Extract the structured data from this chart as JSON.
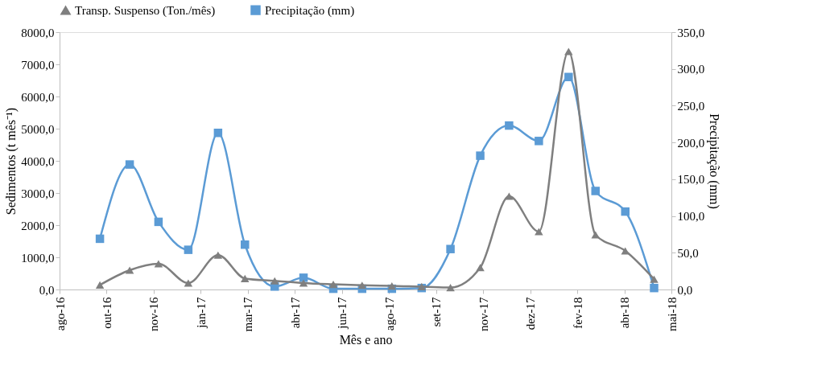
{
  "chart_data": {
    "type": "line",
    "x": [
      "2016-10-05",
      "2016-11-05",
      "2016-12-05",
      "2017-01-05",
      "2017-02-05",
      "2017-03-05",
      "2017-04-05",
      "2017-05-05",
      "2017-06-05",
      "2017-07-05",
      "2017-08-05",
      "2017-09-05",
      "2017-10-05",
      "2017-11-05",
      "2017-12-05",
      "2018-01-05",
      "2018-02-05",
      "2018-03-05",
      "2018-04-05",
      "2018-05-05"
    ],
    "series": [
      {
        "name": "Transp. Suspenso (Ton./mês)",
        "color": "#7f7f7f",
        "marker": "triangle",
        "values": [
          140,
          600,
          800,
          200,
          1070,
          340,
          270,
          200,
          160,
          130,
          110,
          90,
          60,
          680,
          2900,
          1800,
          7400,
          1700,
          1200,
          320
        ]
      },
      {
        "name": "Precipitação (mm)",
        "color": "#5b9bd5",
        "marker": "square",
        "axis": "y2",
        "values": [
          69,
          170,
          92,
          54,
          213,
          61,
          4,
          16,
          1,
          1,
          1,
          2,
          55,
          182,
          223,
          202,
          289,
          134,
          106,
          2
        ]
      }
    ],
    "xlabel": "Mês e ano",
    "ylabel": "Sedimentos (t mês⁻¹)",
    "y2label": "Precipitação (mm)",
    "xlim": [
      "2016-08-24",
      "2018-05-23"
    ],
    "xticks": [
      {
        "value": "2016-08-24",
        "label": "ago-16"
      },
      {
        "value": "2016-10-12",
        "label": "out-16"
      },
      {
        "value": "2016-11-30",
        "label": "nov-16"
      },
      {
        "value": "2017-01-18",
        "label": "jan-17"
      },
      {
        "value": "2017-03-08",
        "label": "mar-17"
      },
      {
        "value": "2017-04-26",
        "label": "abr-17"
      },
      {
        "value": "2017-06-14",
        "label": "jun-17"
      },
      {
        "value": "2017-08-02",
        "label": "ago-17"
      },
      {
        "value": "2017-09-20",
        "label": "set-17"
      },
      {
        "value": "2017-11-08",
        "label": "nov-17"
      },
      {
        "value": "2017-12-27",
        "label": "dez-17"
      },
      {
        "value": "2018-02-14",
        "label": "fev-18"
      },
      {
        "value": "2018-04-04",
        "label": "abr-18"
      },
      {
        "value": "2018-05-23",
        "label": "mai-18"
      }
    ],
    "ylim": [
      0,
      8000
    ],
    "yticks": [
      {
        "value": 0,
        "label": "0,0"
      },
      {
        "value": 1000,
        "label": "1000,0"
      },
      {
        "value": 2000,
        "label": "2000,0"
      },
      {
        "value": 3000,
        "label": "3000,0"
      },
      {
        "value": 4000,
        "label": "4000,0"
      },
      {
        "value": 5000,
        "label": "5000,0"
      },
      {
        "value": 6000,
        "label": "6000,0"
      },
      {
        "value": 7000,
        "label": "7000,0"
      },
      {
        "value": 8000,
        "label": "8000,0"
      }
    ],
    "y2lim": [
      0,
      350
    ],
    "y2ticks": [
      {
        "value": 0,
        "label": "0,0"
      },
      {
        "value": 50,
        "label": "50,0"
      },
      {
        "value": 100,
        "label": "100,0"
      },
      {
        "value": 150,
        "label": "150,0"
      },
      {
        "value": 200,
        "label": "200,0"
      },
      {
        "value": 250,
        "label": "250,0"
      },
      {
        "value": 300,
        "label": "300,0"
      },
      {
        "value": 350,
        "label": "350,0"
      }
    ],
    "grid": false,
    "legend": "top",
    "line_style": "solid"
  }
}
